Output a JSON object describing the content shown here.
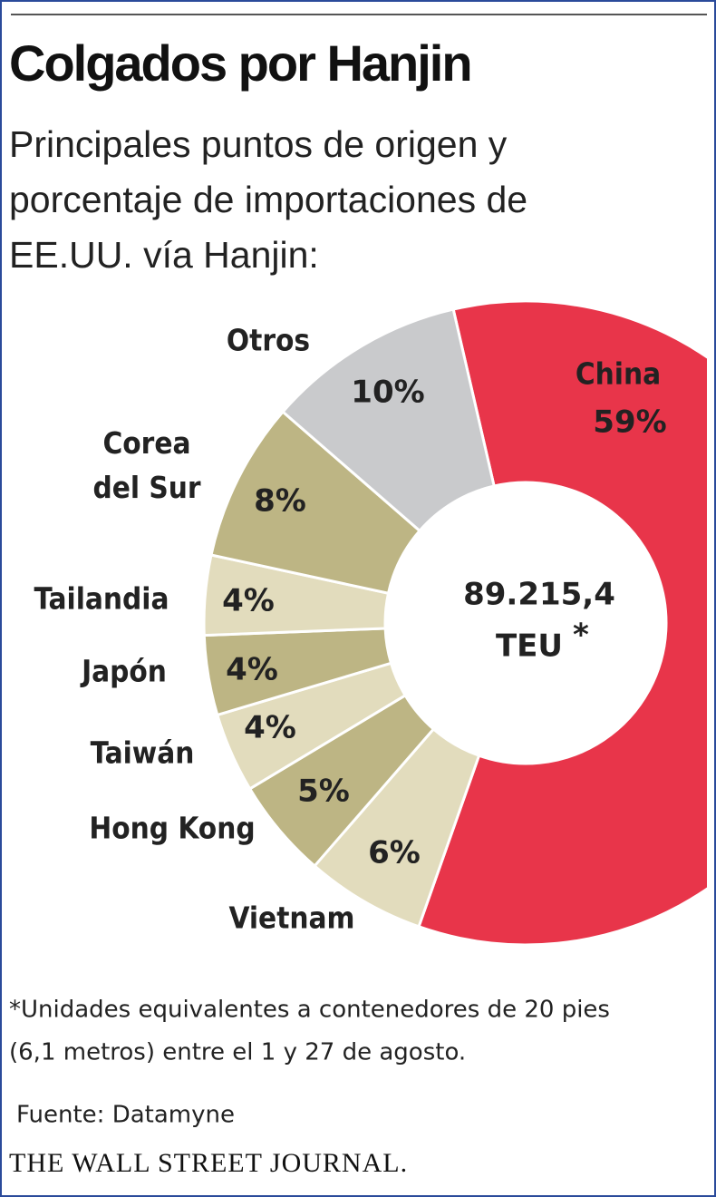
{
  "chart_data": {
    "type": "donut",
    "title": "Colgados por Hanjin",
    "subtitle": [
      "Principales puntos de origen y",
      "porcentaje de importaciones de",
      "EE.UU. vía Hanjin:"
    ],
    "categories": [
      "China",
      "Vietnam",
      "Hong Kong",
      "Taiwán",
      "Japón",
      "Tailandia",
      "Corea del Sur",
      "Otros"
    ],
    "values": [
      59,
      6,
      5,
      4,
      4,
      4,
      8,
      10
    ],
    "value_labels": [
      "59%",
      "6%",
      "5%",
      "4%",
      "4%",
      "4%",
      "8%",
      "10%"
    ],
    "colors": [
      "#e8354a",
      "#e2dcbd",
      "#bdb584",
      "#e2dcbd",
      "#bdb584",
      "#e2dcbd",
      "#bdb584",
      "#c9cacc"
    ],
    "center_value": "89.215,4",
    "center_unit": "TEU",
    "center_mark": "*",
    "footnote": [
      "*Unidades equivalentes a contenedores de 20 pies",
      "(6,1 metros) entre el 1 y 27 de agosto."
    ],
    "source": "Fuente: Datamyne",
    "publisher": "THE WALL STREET JOURNAL."
  }
}
